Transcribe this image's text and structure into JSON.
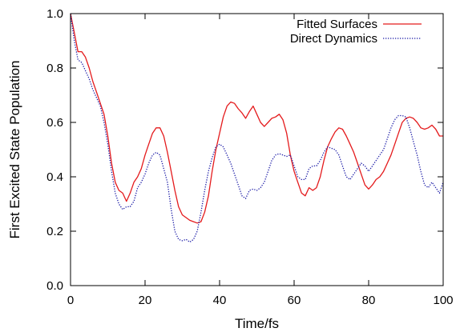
{
  "chart_data": {
    "type": "line",
    "xlabel": "Time/fs",
    "ylabel": "First Excited State Population",
    "xlim": [
      0,
      100
    ],
    "ylim": [
      0,
      1.0
    ],
    "x_ticks": [
      0,
      20,
      40,
      60,
      80,
      100
    ],
    "y_ticks": [
      0.0,
      0.2,
      0.4,
      0.6,
      0.8,
      1.0
    ],
    "x_tick_labels": [
      "0",
      "20",
      "40",
      "60",
      "80",
      "100"
    ],
    "y_tick_labels": [
      "0.0",
      "0.2",
      "0.4",
      "0.6",
      "0.8",
      "1.0"
    ],
    "legend_position": "top-right",
    "grid": false,
    "series": [
      {
        "name": "Fitted Surfaces",
        "color": "#e41a1c",
        "style": "solid",
        "x": [
          0,
          1,
          2,
          3,
          4,
          5,
          6,
          7,
          8,
          9,
          10,
          11,
          12,
          13,
          14,
          15,
          16,
          17,
          18,
          19,
          20,
          21,
          22,
          23,
          24,
          25,
          26,
          27,
          28,
          29,
          30,
          31,
          32,
          33,
          34,
          35,
          36,
          37,
          38,
          39,
          40,
          41,
          42,
          43,
          44,
          45,
          46,
          47,
          48,
          49,
          50,
          51,
          52,
          53,
          54,
          55,
          56,
          57,
          58,
          59,
          60,
          61,
          62,
          63,
          64,
          65,
          66,
          67,
          68,
          69,
          70,
          71,
          72,
          73,
          74,
          75,
          76,
          77,
          78,
          79,
          80,
          81,
          82,
          83,
          84,
          85,
          86,
          87,
          88,
          89,
          90,
          91,
          92,
          93,
          94,
          95,
          96,
          97,
          98,
          99,
          100
        ],
        "y": [
          1.0,
          0.93,
          0.86,
          0.86,
          0.84,
          0.8,
          0.75,
          0.71,
          0.67,
          0.63,
          0.55,
          0.45,
          0.38,
          0.35,
          0.34,
          0.31,
          0.34,
          0.38,
          0.4,
          0.43,
          0.48,
          0.52,
          0.56,
          0.58,
          0.58,
          0.55,
          0.49,
          0.42,
          0.35,
          0.29,
          0.26,
          0.25,
          0.24,
          0.235,
          0.23,
          0.235,
          0.27,
          0.33,
          0.42,
          0.5,
          0.56,
          0.62,
          0.66,
          0.675,
          0.67,
          0.65,
          0.635,
          0.615,
          0.64,
          0.66,
          0.63,
          0.6,
          0.585,
          0.6,
          0.615,
          0.62,
          0.63,
          0.61,
          0.56,
          0.48,
          0.42,
          0.38,
          0.34,
          0.33,
          0.36,
          0.35,
          0.36,
          0.4,
          0.46,
          0.51,
          0.54,
          0.565,
          0.58,
          0.575,
          0.55,
          0.52,
          0.49,
          0.45,
          0.41,
          0.37,
          0.355,
          0.37,
          0.39,
          0.4,
          0.42,
          0.45,
          0.48,
          0.52,
          0.56,
          0.6,
          0.615,
          0.62,
          0.615,
          0.6,
          0.58,
          0.575,
          0.58,
          0.59,
          0.575,
          0.55,
          0.55
        ]
      },
      {
        "name": "Direct Dynamics",
        "color": "#1a1aa6",
        "style": "dotted",
        "x": [
          0,
          1,
          2,
          3,
          4,
          5,
          6,
          7,
          8,
          9,
          10,
          11,
          12,
          13,
          14,
          15,
          16,
          17,
          18,
          19,
          20,
          21,
          22,
          23,
          24,
          25,
          26,
          27,
          28,
          29,
          30,
          31,
          32,
          33,
          34,
          35,
          36,
          37,
          38,
          39,
          40,
          41,
          42,
          43,
          44,
          45,
          46,
          47,
          48,
          49,
          50,
          51,
          52,
          53,
          54,
          55,
          56,
          57,
          58,
          59,
          60,
          61,
          62,
          63,
          64,
          65,
          66,
          67,
          68,
          69,
          70,
          71,
          72,
          73,
          74,
          75,
          76,
          77,
          78,
          79,
          80,
          81,
          82,
          83,
          84,
          85,
          86,
          87,
          88,
          89,
          90,
          91,
          92,
          93,
          94,
          95,
          96,
          97,
          98,
          99,
          100
        ],
        "y": [
          1.0,
          0.9,
          0.83,
          0.82,
          0.79,
          0.76,
          0.72,
          0.69,
          0.66,
          0.6,
          0.52,
          0.42,
          0.34,
          0.3,
          0.28,
          0.29,
          0.29,
          0.31,
          0.36,
          0.38,
          0.41,
          0.45,
          0.48,
          0.49,
          0.48,
          0.43,
          0.38,
          0.28,
          0.2,
          0.17,
          0.165,
          0.17,
          0.16,
          0.17,
          0.2,
          0.27,
          0.35,
          0.42,
          0.47,
          0.51,
          0.52,
          0.51,
          0.48,
          0.45,
          0.41,
          0.37,
          0.33,
          0.32,
          0.35,
          0.355,
          0.35,
          0.36,
          0.38,
          0.42,
          0.46,
          0.48,
          0.485,
          0.48,
          0.475,
          0.48,
          0.44,
          0.4,
          0.39,
          0.39,
          0.43,
          0.44,
          0.44,
          0.46,
          0.49,
          0.51,
          0.505,
          0.5,
          0.48,
          0.44,
          0.4,
          0.39,
          0.41,
          0.43,
          0.45,
          0.44,
          0.42,
          0.44,
          0.46,
          0.48,
          0.5,
          0.54,
          0.58,
          0.61,
          0.625,
          0.625,
          0.62,
          0.58,
          0.53,
          0.48,
          0.42,
          0.37,
          0.36,
          0.38,
          0.36,
          0.34,
          0.38
        ]
      }
    ]
  }
}
